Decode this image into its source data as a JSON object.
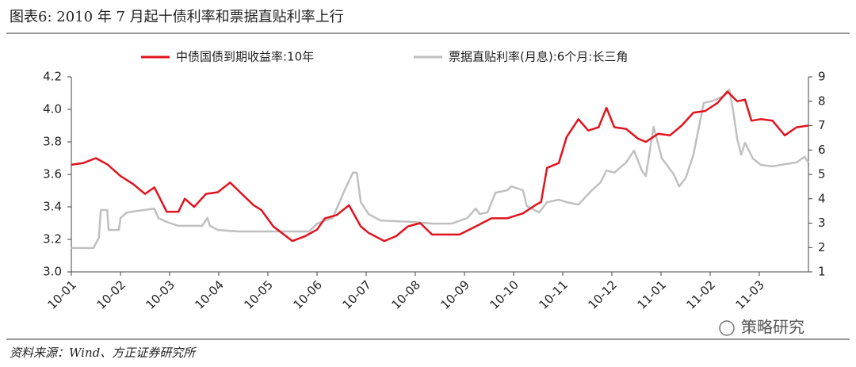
{
  "chart_data": {
    "type": "line",
    "title": "图表6:   2010 年 7 月起十债利率和票据直贴利率上行",
    "source": "资料来源：Wind、方正证券研究所",
    "watermark": "策略研究",
    "xlim": [
      0,
      15
    ],
    "xticks": [
      {
        "value": 0,
        "label": "10-01"
      },
      {
        "value": 1,
        "label": "10-02"
      },
      {
        "value": 2,
        "label": "10-03"
      },
      {
        "value": 3,
        "label": "10-04"
      },
      {
        "value": 4,
        "label": "10-05"
      },
      {
        "value": 5,
        "label": "10-06"
      },
      {
        "value": 6,
        "label": "10-07"
      },
      {
        "value": 7,
        "label": "10-08"
      },
      {
        "value": 8,
        "label": "10-09"
      },
      {
        "value": 9,
        "label": "10-10"
      },
      {
        "value": 10,
        "label": "10-11"
      },
      {
        "value": 11,
        "label": "10-12"
      },
      {
        "value": 12,
        "label": "11-01"
      },
      {
        "value": 13,
        "label": "11-02"
      },
      {
        "value": 14,
        "label": "11-03"
      }
    ],
    "ylim": [
      3.0,
      4.2
    ],
    "yticks": [
      {
        "value": 3.0,
        "label": "3.0"
      },
      3.2,
      3.4,
      3.6,
      3.8,
      {
        "value": 4.0,
        "label": "4.0"
      },
      4.2
    ],
    "y2lim": [
      1,
      9
    ],
    "y2ticks": [
      1,
      2,
      3,
      4,
      5,
      6,
      7,
      8,
      9
    ],
    "series": [
      {
        "name": "中债国债到期收益率:10年",
        "color": "#e0141e",
        "x": [
          0,
          0.24,
          0.5,
          0.74,
          1.0,
          1.26,
          1.5,
          1.69,
          1.94,
          2.18,
          2.31,
          2.5,
          2.74,
          2.98,
          3.23,
          3.47,
          3.71,
          3.87,
          4.11,
          4.5,
          4.76,
          5.0,
          5.16,
          5.4,
          5.65,
          5.89,
          6.05,
          6.37,
          6.61,
          6.85,
          7.1,
          7.34,
          7.58,
          7.9,
          8.23,
          8.55,
          8.87,
          9.19,
          9.44,
          9.56,
          9.68,
          9.92,
          10.08,
          10.32,
          10.52,
          10.73,
          10.89,
          11.05,
          11.29,
          11.53,
          11.69,
          11.94,
          12.18,
          12.42,
          12.66,
          12.9,
          13.15,
          13.35,
          13.55,
          13.71,
          13.84,
          14.03,
          14.27,
          14.52,
          14.76,
          15.0
        ],
        "values": [
          3.66,
          3.67,
          3.7,
          3.66,
          3.59,
          3.54,
          3.48,
          3.52,
          3.37,
          3.37,
          3.45,
          3.4,
          3.48,
          3.49,
          3.55,
          3.48,
          3.41,
          3.38,
          3.28,
          3.19,
          3.22,
          3.26,
          3.33,
          3.35,
          3.41,
          3.28,
          3.24,
          3.19,
          3.22,
          3.28,
          3.3,
          3.23,
          3.23,
          3.23,
          3.28,
          3.33,
          3.33,
          3.36,
          3.41,
          3.43,
          3.64,
          3.67,
          3.83,
          3.94,
          3.87,
          3.89,
          4.01,
          3.89,
          3.88,
          3.82,
          3.8,
          3.85,
          3.84,
          3.9,
          3.98,
          3.99,
          4.04,
          4.11,
          4.05,
          4.06,
          3.93,
          3.94,
          3.93,
          3.84,
          3.89,
          3.9
        ]
      },
      {
        "name": "票据直贴利率(月息):6个月:长三角",
        "color": "#c0c0c0",
        "axis": "y2",
        "x": [
          0,
          0.45,
          0.56,
          0.6,
          0.73,
          0.76,
          0.97,
          1.0,
          1.13,
          1.69,
          1.77,
          1.94,
          2.18,
          2.66,
          2.77,
          2.82,
          2.98,
          3.39,
          4.03,
          4.84,
          5.0,
          5.32,
          5.56,
          5.73,
          5.81,
          5.89,
          6.05,
          6.29,
          6.94,
          7.34,
          7.74,
          8.06,
          8.23,
          8.31,
          8.47,
          8.63,
          8.87,
          8.95,
          9.19,
          9.27,
          9.52,
          9.68,
          9.92,
          10.08,
          10.32,
          10.56,
          10.77,
          10.89,
          11.05,
          11.29,
          11.45,
          11.61,
          11.69,
          11.85,
          12.02,
          12.26,
          12.37,
          12.5,
          12.66,
          12.74,
          12.87,
          13.06,
          13.31,
          13.39,
          13.47,
          13.55,
          13.63,
          13.71,
          13.87,
          14.03,
          14.27,
          14.52,
          14.76,
          14.92,
          15.0
        ],
        "values": [
          1.98,
          1.98,
          2.4,
          3.54,
          3.54,
          2.72,
          2.72,
          3.21,
          3.44,
          3.6,
          3.21,
          3.05,
          2.89,
          2.89,
          3.21,
          2.89,
          2.72,
          2.66,
          2.66,
          2.66,
          2.98,
          3.21,
          4.35,
          5.07,
          5.07,
          3.86,
          3.37,
          3.11,
          3.05,
          2.98,
          2.98,
          3.21,
          3.6,
          3.37,
          3.44,
          4.25,
          4.35,
          4.51,
          4.35,
          3.7,
          3.44,
          3.86,
          3.96,
          3.86,
          3.76,
          4.28,
          4.67,
          5.16,
          5.07,
          5.49,
          5.98,
          5.16,
          4.93,
          6.95,
          5.65,
          5.0,
          4.51,
          4.84,
          5.81,
          6.63,
          7.93,
          8.02,
          8.25,
          8.48,
          7.6,
          6.46,
          5.81,
          6.3,
          5.65,
          5.39,
          5.33,
          5.42,
          5.49,
          5.72,
          5.49
        ]
      }
    ]
  }
}
